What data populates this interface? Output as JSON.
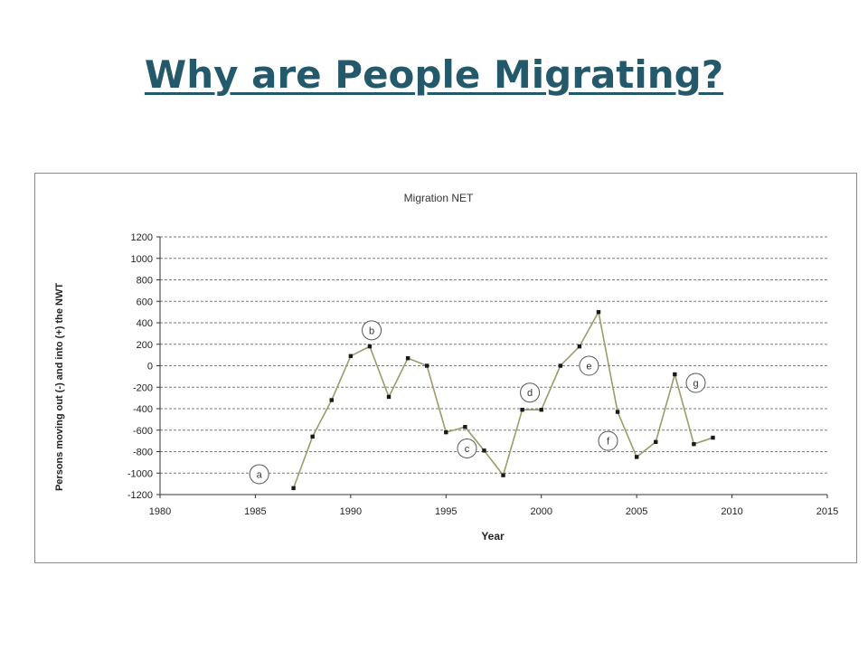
{
  "slide": {
    "title": "Why are People Migrating?"
  },
  "colors": {
    "title": "#23596a",
    "series_line": "#9c9c6a",
    "marker": "#1a1a1a",
    "grid": "#7a7a7a"
  },
  "chart_data": {
    "type": "line",
    "title": "Migration NET",
    "xlabel": "Year",
    "ylabel": "Persons moving out (-) and into (+) the NWT",
    "xlim": [
      1980,
      2015
    ],
    "ylim": [
      -1200,
      1200
    ],
    "x_ticks": [
      1980,
      1985,
      1990,
      1995,
      2000,
      2005,
      2010,
      2015
    ],
    "y_ticks": [
      1200,
      1000,
      800,
      600,
      400,
      200,
      0,
      -200,
      -400,
      -600,
      -800,
      -1000,
      -1200
    ],
    "grid": "horizontal dashed",
    "series": [
      {
        "x": [
          1987,
          1988,
          1989,
          1990,
          1991,
          1992,
          1993,
          1994,
          1995,
          1996,
          1997,
          1998,
          1999,
          2000,
          2001,
          2002,
          2003,
          2004,
          2005,
          2006,
          2007,
          2008,
          2009
        ],
        "values": [
          -1140,
          -660,
          -320,
          90,
          180,
          -290,
          70,
          0,
          -620,
          -570,
          -790,
          -1020,
          -410,
          -410,
          0,
          180,
          500,
          -430,
          -850,
          -710,
          -80,
          -730,
          -670
        ]
      }
    ],
    "annotations": [
      {
        "label": "a",
        "x": 1985.2,
        "y": -1010
      },
      {
        "label": "b",
        "x": 1991.1,
        "y": 330
      },
      {
        "label": "c",
        "x": 1996.1,
        "y": -770
      },
      {
        "label": "d",
        "x": 1999.4,
        "y": -250
      },
      {
        "label": "e",
        "x": 2002.5,
        "y": 0
      },
      {
        "label": "f",
        "x": 2003.5,
        "y": -700
      },
      {
        "label": "g",
        "x": 2008.1,
        "y": -160
      }
    ]
  }
}
